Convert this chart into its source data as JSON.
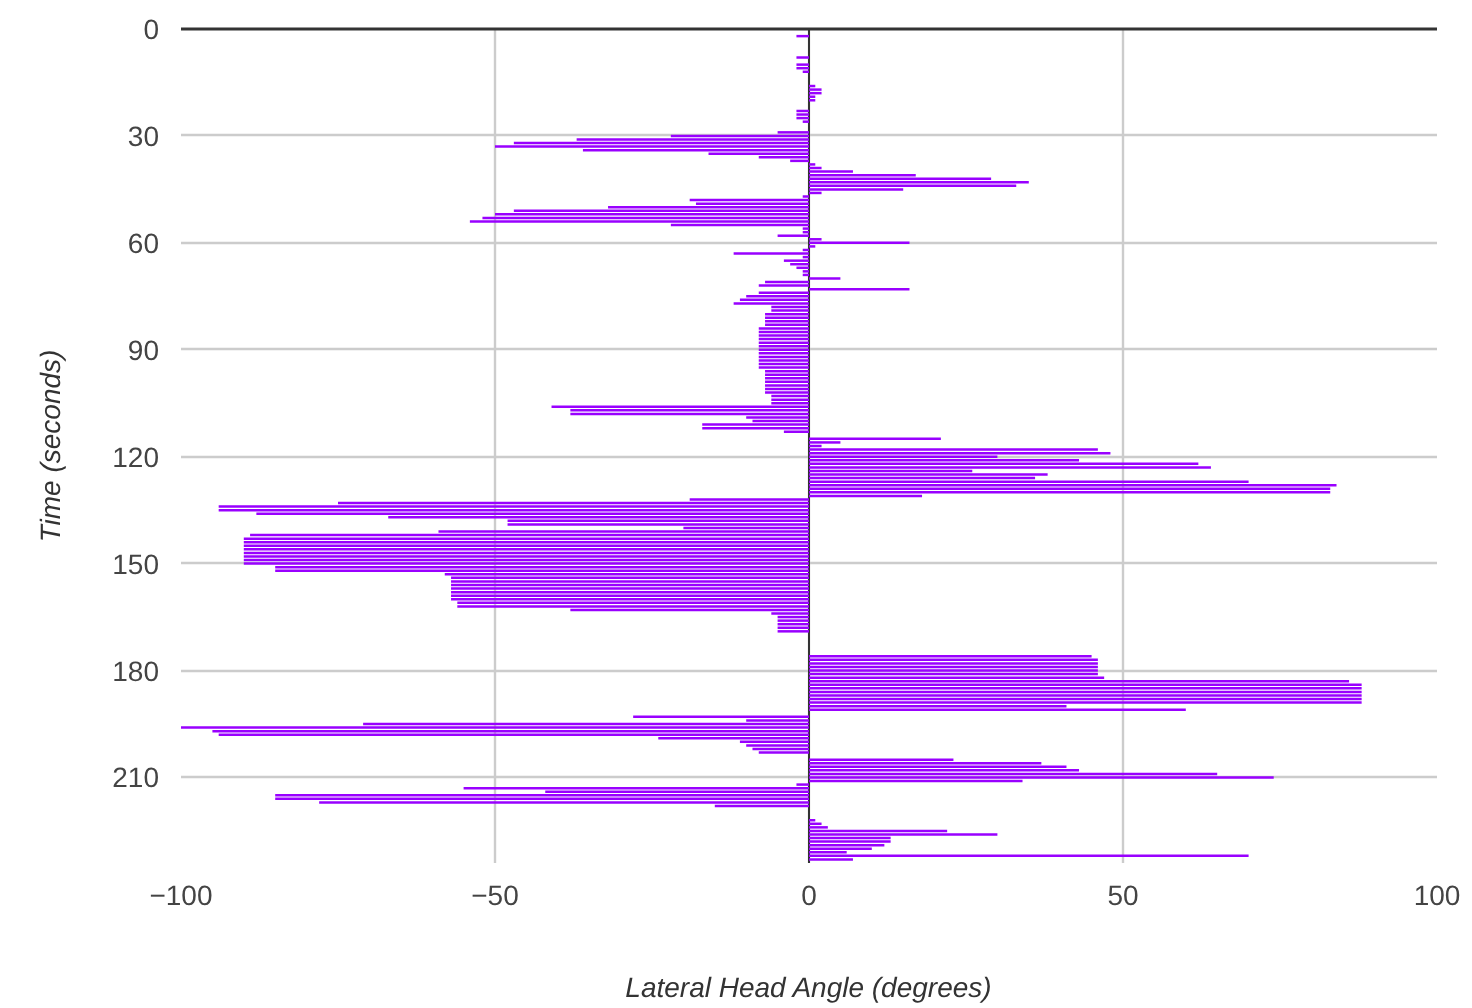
{
  "chart_data": {
    "type": "bar",
    "orientation": "horizontal",
    "xlabel": "Lateral Head Angle (degrees)",
    "ylabel": "Time (seconds)",
    "x": [
      0,
      1,
      2,
      3,
      4,
      5,
      6,
      7,
      8,
      9,
      10,
      11,
      12,
      13,
      14,
      15,
      16,
      17,
      18,
      19,
      20,
      21,
      22,
      23,
      24,
      25,
      26,
      27,
      28,
      29,
      30,
      31,
      32,
      33,
      34,
      35,
      36,
      37,
      38,
      39,
      40,
      41,
      42,
      43,
      44,
      45,
      46,
      47,
      48,
      49,
      50,
      51,
      52,
      53,
      54,
      55,
      56,
      57,
      58,
      59,
      60,
      61,
      62,
      63,
      64,
      65,
      66,
      67,
      68,
      69,
      70,
      71,
      72,
      73,
      74,
      75,
      76,
      77,
      78,
      79,
      80,
      81,
      82,
      83,
      84,
      85,
      86,
      87,
      88,
      89,
      90,
      91,
      92,
      93,
      94,
      95,
      96,
      97,
      98,
      99,
      100,
      101,
      102,
      103,
      104,
      105,
      106,
      107,
      108,
      109,
      110,
      111,
      112,
      113,
      114,
      115,
      116,
      117,
      118,
      119,
      120,
      121,
      122,
      123,
      124,
      125,
      126,
      127,
      128,
      129,
      130,
      131,
      132,
      133,
      134,
      135,
      136,
      137,
      138,
      139,
      140,
      141,
      142,
      143,
      144,
      145,
      146,
      147,
      148,
      149,
      150,
      151,
      152,
      153,
      154,
      155,
      156,
      157,
      158,
      159,
      160,
      161,
      162,
      163,
      164,
      165,
      166,
      167,
      168,
      169,
      170,
      171,
      172,
      173,
      174,
      175,
      176,
      177,
      178,
      179,
      180,
      181,
      182,
      183,
      184,
      185,
      186,
      187,
      188,
      189,
      190,
      191,
      192,
      193,
      194,
      195,
      196,
      197,
      198,
      199,
      200,
      201,
      202,
      203,
      204,
      205,
      206,
      207,
      208,
      209,
      210,
      211,
      212,
      213,
      214,
      215,
      216,
      217,
      218,
      219,
      220,
      221,
      222,
      223,
      224,
      225,
      226,
      227,
      228,
      229,
      230,
      231,
      232,
      233
    ],
    "series": [
      {
        "color": "#9900ff",
        "values": [
          0,
          0,
          -2,
          0,
          0,
          0,
          0,
          0,
          -2,
          0,
          -2,
          -2,
          -1,
          0,
          0,
          0,
          1,
          2,
          2,
          1,
          1,
          0,
          0,
          -2,
          -2,
          -2,
          -1,
          0,
          0,
          -5,
          -22,
          -37,
          -47,
          -50,
          -36,
          -16,
          -8,
          -3,
          1,
          2,
          7,
          17,
          29,
          35,
          33,
          15,
          2,
          -1,
          -19,
          -18,
          -32,
          -47,
          -50,
          -52,
          -54,
          -22,
          -1,
          -1,
          -5,
          2,
          16,
          1,
          -1,
          -12,
          -1,
          -4,
          -3,
          -2,
          -1,
          -1,
          5,
          -7,
          -8,
          16,
          -8,
          -10,
          -11,
          -12,
          -6,
          -6,
          -7,
          -7,
          -7,
          -7,
          -8,
          -8,
          -8,
          -8,
          -8,
          -8,
          -8,
          -8,
          -8,
          -8,
          -8,
          -8,
          -7,
          -7,
          -7,
          -7,
          -7,
          -7,
          -7,
          -6,
          -6,
          -6,
          -41,
          -38,
          -38,
          -10,
          -9,
          -17,
          -17,
          -4,
          0,
          21,
          5,
          2,
          46,
          48,
          30,
          43,
          62,
          64,
          26,
          38,
          36,
          70,
          84,
          83,
          83,
          18,
          -19,
          -75,
          -94,
          -94,
          -88,
          -67,
          -48,
          -48,
          -20,
          -59,
          -89,
          -90,
          -90,
          -90,
          -90,
          -90,
          -90,
          -90,
          -90,
          -85,
          -85,
          -58,
          -57,
          -57,
          -57,
          -57,
          -57,
          -57,
          -57,
          -56,
          -56,
          -38,
          -6,
          -5,
          -5,
          -5,
          -5,
          -5,
          0,
          0,
          0,
          0,
          0,
          0,
          45,
          46,
          46,
          46,
          46,
          46,
          47,
          86,
          88,
          88,
          88,
          88,
          88,
          88,
          41,
          60,
          0,
          -28,
          -10,
          -71,
          -100,
          -95,
          -94,
          -24,
          -11,
          -10,
          -9,
          -8,
          0,
          23,
          37,
          41,
          43,
          65,
          74,
          34,
          -2,
          -55,
          -42,
          -85,
          -85,
          -78,
          -15,
          0,
          0,
          0,
          1,
          2,
          3,
          22,
          30,
          13,
          13,
          12,
          10,
          6,
          70,
          7
        ]
      }
    ],
    "xlim": [
      -100,
      100
    ],
    "xticks": [
      -100,
      -50,
      0,
      50,
      100
    ],
    "ylim": [
      234,
      0
    ],
    "yticks": [
      0,
      30,
      60,
      90,
      120,
      150,
      180,
      210
    ],
    "grid": true
  }
}
